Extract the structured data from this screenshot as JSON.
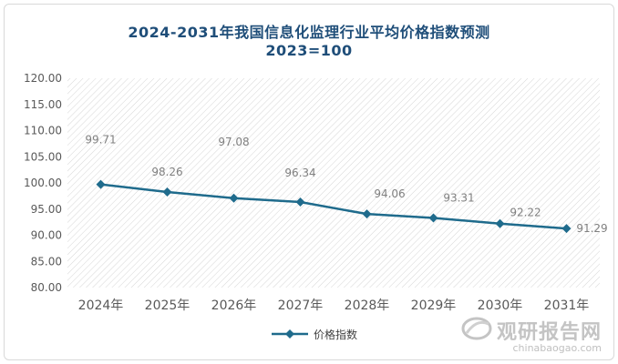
{
  "title_line1": "2024-2031年我国信息化监理行业平均价格指数预测",
  "title_line2": "2023=100",
  "watermark": {
    "brand": "观研报告网",
    "url": "chinabaogao.com"
  },
  "colors": {
    "series": "#1f6b8c",
    "title": "#1f4e79",
    "label": "#808080",
    "axis_text": "#595959"
  },
  "chart_data": {
    "type": "line",
    "categories": [
      "2024年",
      "2025年",
      "2026年",
      "2027年",
      "2028年",
      "2029年",
      "2030年",
      "2031年"
    ],
    "series": [
      {
        "name": "价格指数",
        "values": [
          99.71,
          98.26,
          97.08,
          96.34,
          94.06,
          93.31,
          92.22,
          91.29
        ]
      }
    ],
    "data_labels": [
      "99.71",
      "98.26",
      "97.08",
      "96.34",
      "94.06",
      "93.31",
      "92.22",
      "91.29"
    ],
    "yticks": [
      "80.00",
      "85.00",
      "90.00",
      "95.00",
      "100.00",
      "105.00",
      "110.00",
      "115.00",
      "120.00"
    ],
    "ylim": [
      80,
      120
    ],
    "ystep": 5,
    "legend": "bottom-center",
    "plot_background": "hatched"
  }
}
